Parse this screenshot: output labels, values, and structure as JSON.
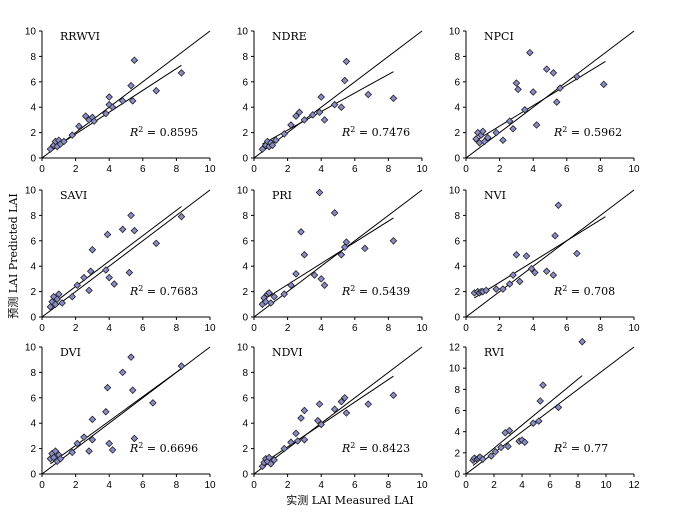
{
  "y_axis_label": "预测 LAI Predicted LAI",
  "x_axis_label": "实测 LAI Measured LAI",
  "r2_prefix": "R",
  "r2_sup": "2",
  "r2_eq": " = ",
  "chart_data": [
    {
      "type": "scatter",
      "title": "RRWVI",
      "r2": "0.8595",
      "xlim": [
        0,
        10
      ],
      "ylim": [
        0,
        10
      ],
      "xticks": [
        0,
        2,
        4,
        6,
        8,
        10
      ],
      "yticks": [
        0,
        2,
        4,
        6,
        8,
        10
      ],
      "points": [
        [
          0.5,
          0.7
        ],
        [
          0.7,
          1.0
        ],
        [
          0.8,
          1.3
        ],
        [
          0.9,
          0.9
        ],
        [
          1.0,
          1.4
        ],
        [
          1.1,
          1.1
        ],
        [
          1.3,
          1.3
        ],
        [
          1.8,
          1.8
        ],
        [
          2.2,
          2.5
        ],
        [
          2.6,
          3.3
        ],
        [
          2.8,
          3.0
        ],
        [
          3.0,
          3.2
        ],
        [
          3.1,
          2.9
        ],
        [
          3.8,
          3.5
        ],
        [
          4.0,
          4.8
        ],
        [
          4.0,
          4.2
        ],
        [
          4.2,
          4.0
        ],
        [
          4.8,
          4.5
        ],
        [
          5.3,
          5.7
        ],
        [
          5.4,
          4.5
        ],
        [
          5.5,
          7.7
        ],
        [
          6.8,
          5.3
        ],
        [
          8.3,
          6.7
        ]
      ],
      "fit_line": [
        [
          0.5,
          0.6
        ],
        [
          8.3,
          7.3
        ]
      ],
      "one_to_one": [
        [
          0,
          0
        ],
        [
          10,
          10
        ]
      ]
    },
    {
      "type": "scatter",
      "title": "NDRE",
      "r2": "0.7476",
      "xlim": [
        0,
        10
      ],
      "ylim": [
        0,
        10
      ],
      "xticks": [
        0,
        2,
        4,
        6,
        8,
        10
      ],
      "yticks": [
        0,
        2,
        4,
        6,
        8,
        10
      ],
      "points": [
        [
          0.5,
          0.7
        ],
        [
          0.7,
          1.0
        ],
        [
          0.8,
          1.3
        ],
        [
          0.9,
          0.9
        ],
        [
          1.0,
          1.2
        ],
        [
          1.1,
          1.0
        ],
        [
          1.3,
          1.4
        ],
        [
          1.8,
          1.9
        ],
        [
          2.2,
          2.6
        ],
        [
          2.5,
          3.3
        ],
        [
          2.7,
          3.6
        ],
        [
          3.0,
          3.0
        ],
        [
          3.5,
          3.4
        ],
        [
          3.9,
          3.6
        ],
        [
          4.0,
          4.8
        ],
        [
          4.2,
          3.0
        ],
        [
          4.8,
          4.2
        ],
        [
          5.2,
          4.0
        ],
        [
          5.4,
          6.1
        ],
        [
          5.5,
          7.6
        ],
        [
          6.8,
          5.0
        ],
        [
          8.3,
          4.7
        ]
      ],
      "fit_line": [
        [
          0.5,
          1.1
        ],
        [
          8.3,
          6.8
        ]
      ],
      "one_to_one": [
        [
          0,
          0
        ],
        [
          10,
          10
        ]
      ]
    },
    {
      "type": "scatter",
      "title": "NPCI",
      "r2": "0.5962",
      "xlim": [
        0,
        10
      ],
      "ylim": [
        0,
        10
      ],
      "xticks": [
        0,
        2,
        4,
        6,
        8,
        10
      ],
      "yticks": [
        0,
        2,
        4,
        6,
        8,
        10
      ],
      "points": [
        [
          0.6,
          1.5
        ],
        [
          0.7,
          2.0
        ],
        [
          0.8,
          1.2
        ],
        [
          0.9,
          1.8
        ],
        [
          1.0,
          2.1
        ],
        [
          1.1,
          1.3
        ],
        [
          1.3,
          1.6
        ],
        [
          1.8,
          2.0
        ],
        [
          2.2,
          1.4
        ],
        [
          2.6,
          2.9
        ],
        [
          2.8,
          2.3
        ],
        [
          3.0,
          5.9
        ],
        [
          3.1,
          5.4
        ],
        [
          3.5,
          3.8
        ],
        [
          3.8,
          8.3
        ],
        [
          4.0,
          5.2
        ],
        [
          4.2,
          2.6
        ],
        [
          4.8,
          7.0
        ],
        [
          5.2,
          6.7
        ],
        [
          5.4,
          4.4
        ],
        [
          5.6,
          5.5
        ],
        [
          6.6,
          6.4
        ],
        [
          8.2,
          5.8
        ]
      ],
      "fit_line": [
        [
          0.5,
          1.3
        ],
        [
          8.3,
          7.6
        ]
      ],
      "one_to_one": [
        [
          0,
          0
        ],
        [
          10,
          10
        ]
      ]
    },
    {
      "type": "scatter",
      "title": "SAVI",
      "r2": "0.7683",
      "xlim": [
        0,
        10
      ],
      "ylim": [
        0,
        10
      ],
      "xticks": [
        0,
        2,
        4,
        6,
        8,
        10
      ],
      "yticks": [
        0,
        2,
        4,
        6,
        8,
        10
      ],
      "points": [
        [
          0.5,
          0.8
        ],
        [
          0.6,
          1.2
        ],
        [
          0.7,
          1.6
        ],
        [
          0.8,
          1.0
        ],
        [
          0.9,
          1.4
        ],
        [
          1.0,
          1.8
        ],
        [
          1.2,
          1.1
        ],
        [
          1.8,
          1.6
        ],
        [
          2.1,
          2.5
        ],
        [
          2.5,
          3.1
        ],
        [
          2.8,
          2.1
        ],
        [
          2.9,
          3.6
        ],
        [
          3.0,
          5.3
        ],
        [
          3.8,
          3.7
        ],
        [
          3.9,
          6.5
        ],
        [
          4.0,
          3.1
        ],
        [
          4.3,
          2.6
        ],
        [
          4.8,
          6.9
        ],
        [
          5.2,
          3.5
        ],
        [
          5.3,
          8.0
        ],
        [
          5.5,
          6.8
        ],
        [
          6.8,
          5.8
        ],
        [
          8.3,
          7.9
        ]
      ],
      "fit_line": [
        [
          0.5,
          0.9
        ],
        [
          8.3,
          8.7
        ]
      ],
      "one_to_one": [
        [
          0,
          0
        ],
        [
          10,
          10
        ]
      ]
    },
    {
      "type": "scatter",
      "title": "PRI",
      "r2": "0.5439",
      "xlim": [
        0,
        10
      ],
      "ylim": [
        0,
        10
      ],
      "xticks": [
        0,
        2,
        4,
        6,
        8,
        10
      ],
      "yticks": [
        0,
        2,
        4,
        6,
        8,
        10
      ],
      "points": [
        [
          0.5,
          1.0
        ],
        [
          0.6,
          1.5
        ],
        [
          0.7,
          1.2
        ],
        [
          0.8,
          1.8
        ],
        [
          0.9,
          1.9
        ],
        [
          1.0,
          1.1
        ],
        [
          1.2,
          1.6
        ],
        [
          1.8,
          1.8
        ],
        [
          2.2,
          2.5
        ],
        [
          2.5,
          3.4
        ],
        [
          2.8,
          6.7
        ],
        [
          3.0,
          4.9
        ],
        [
          3.6,
          3.3
        ],
        [
          3.9,
          9.8
        ],
        [
          4.0,
          3.0
        ],
        [
          4.2,
          2.5
        ],
        [
          4.8,
          8.2
        ],
        [
          5.2,
          4.9
        ],
        [
          5.4,
          5.5
        ],
        [
          5.5,
          5.9
        ],
        [
          6.6,
          5.4
        ],
        [
          8.3,
          6.0
        ]
      ],
      "fit_line": [
        [
          0.5,
          1.3
        ],
        [
          8.3,
          7.8
        ]
      ],
      "one_to_one": [
        [
          0,
          0
        ],
        [
          10,
          10
        ]
      ]
    },
    {
      "type": "scatter",
      "title": "NVI",
      "r2": "0.708",
      "xlim": [
        0,
        10
      ],
      "ylim": [
        0,
        10
      ],
      "xticks": [
        0,
        2,
        4,
        6,
        8,
        10
      ],
      "yticks": [
        0,
        2,
        4,
        6,
        8,
        10
      ],
      "points": [
        [
          0.5,
          1.9
        ],
        [
          0.7,
          2.0
        ],
        [
          0.8,
          1.9
        ],
        [
          0.9,
          2.0
        ],
        [
          1.0,
          2.0
        ],
        [
          1.2,
          2.1
        ],
        [
          1.8,
          2.2
        ],
        [
          2.2,
          2.2
        ],
        [
          2.6,
          2.6
        ],
        [
          2.8,
          3.3
        ],
        [
          3.0,
          4.9
        ],
        [
          3.2,
          2.8
        ],
        [
          3.6,
          4.8
        ],
        [
          3.9,
          3.8
        ],
        [
          4.1,
          3.5
        ],
        [
          4.8,
          3.6
        ],
        [
          5.2,
          3.3
        ],
        [
          5.3,
          6.4
        ],
        [
          5.5,
          8.8
        ],
        [
          6.6,
          5.0
        ]
      ],
      "fit_line": [
        [
          0.5,
          1.5
        ],
        [
          8.3,
          7.9
        ]
      ],
      "one_to_one": [
        [
          0,
          0
        ],
        [
          10,
          10
        ]
      ]
    },
    {
      "type": "scatter",
      "title": "DVI",
      "r2": "0.6696",
      "xlim": [
        0,
        10
      ],
      "ylim": [
        0,
        10
      ],
      "xticks": [
        0,
        2,
        4,
        6,
        8,
        10
      ],
      "yticks": [
        0,
        2,
        4,
        6,
        8,
        10
      ],
      "points": [
        [
          0.5,
          1.2
        ],
        [
          0.6,
          1.6
        ],
        [
          0.7,
          1.3
        ],
        [
          0.8,
          1.8
        ],
        [
          0.9,
          1.0
        ],
        [
          1.0,
          1.5
        ],
        [
          1.1,
          1.2
        ],
        [
          1.8,
          1.7
        ],
        [
          2.1,
          2.4
        ],
        [
          2.5,
          2.9
        ],
        [
          2.8,
          1.8
        ],
        [
          3.0,
          4.3
        ],
        [
          3.0,
          2.7
        ],
        [
          3.8,
          4.9
        ],
        [
          3.9,
          6.8
        ],
        [
          4.0,
          2.4
        ],
        [
          4.2,
          1.9
        ],
        [
          4.8,
          8.0
        ],
        [
          5.3,
          9.2
        ],
        [
          5.4,
          6.6
        ],
        [
          5.5,
          2.8
        ],
        [
          6.6,
          5.6
        ],
        [
          8.3,
          8.5
        ]
      ],
      "fit_line": [
        [
          0.5,
          0.8
        ],
        [
          8.3,
          8.3
        ]
      ],
      "one_to_one": [
        [
          0,
          0
        ],
        [
          10,
          10
        ]
      ]
    },
    {
      "type": "scatter",
      "title": "NDVI",
      "r2": "0.8423",
      "xlim": [
        0,
        10
      ],
      "ylim": [
        0,
        10
      ],
      "xticks": [
        0,
        2,
        4,
        6,
        8,
        10
      ],
      "yticks": [
        0,
        2,
        4,
        6,
        8,
        10
      ],
      "points": [
        [
          0.5,
          0.6
        ],
        [
          0.6,
          0.9
        ],
        [
          0.7,
          1.2
        ],
        [
          0.8,
          1.0
        ],
        [
          0.9,
          1.3
        ],
        [
          1.0,
          0.8
        ],
        [
          1.2,
          1.1
        ],
        [
          1.8,
          2.0
        ],
        [
          2.2,
          2.5
        ],
        [
          2.5,
          3.2
        ],
        [
          2.6,
          2.6
        ],
        [
          2.8,
          4.4
        ],
        [
          3.0,
          5.0
        ],
        [
          3.0,
          2.7
        ],
        [
          3.8,
          4.2
        ],
        [
          3.9,
          5.5
        ],
        [
          4.0,
          3.9
        ],
        [
          4.8,
          5.1
        ],
        [
          5.2,
          5.7
        ],
        [
          5.4,
          6.0
        ],
        [
          5.5,
          4.8
        ],
        [
          6.8,
          5.5
        ],
        [
          8.3,
          6.2
        ]
      ],
      "fit_line": [
        [
          0.5,
          0.8
        ],
        [
          8.3,
          7.7
        ]
      ],
      "one_to_one": [
        [
          0,
          0
        ],
        [
          10,
          10
        ]
      ]
    },
    {
      "type": "scatter",
      "title": "RVI",
      "r2": "0.77",
      "xlim": [
        0,
        12
      ],
      "ylim": [
        0,
        12
      ],
      "xticks": [
        0,
        2,
        4,
        6,
        8,
        10,
        12
      ],
      "yticks": [
        0,
        2,
        4,
        6,
        8,
        10,
        12
      ],
      "points": [
        [
          0.5,
          1.3
        ],
        [
          0.6,
          1.5
        ],
        [
          0.8,
          1.4
        ],
        [
          0.9,
          1.5
        ],
        [
          1.0,
          1.6
        ],
        [
          1.2,
          1.4
        ],
        [
          1.8,
          1.7
        ],
        [
          2.1,
          2.1
        ],
        [
          2.5,
          2.5
        ],
        [
          2.8,
          3.9
        ],
        [
          3.0,
          2.6
        ],
        [
          3.1,
          4.1
        ],
        [
          3.8,
          3.1
        ],
        [
          4.0,
          3.2
        ],
        [
          4.2,
          3.0
        ],
        [
          4.8,
          4.8
        ],
        [
          5.2,
          5.0
        ],
        [
          5.3,
          6.9
        ],
        [
          5.5,
          8.4
        ],
        [
          6.6,
          6.3
        ],
        [
          8.3,
          12.5
        ]
      ],
      "fit_line": [
        [
          0.5,
          0.8
        ],
        [
          8.3,
          9.3
        ]
      ],
      "one_to_one": [
        [
          0,
          0
        ],
        [
          12,
          12
        ]
      ]
    }
  ]
}
